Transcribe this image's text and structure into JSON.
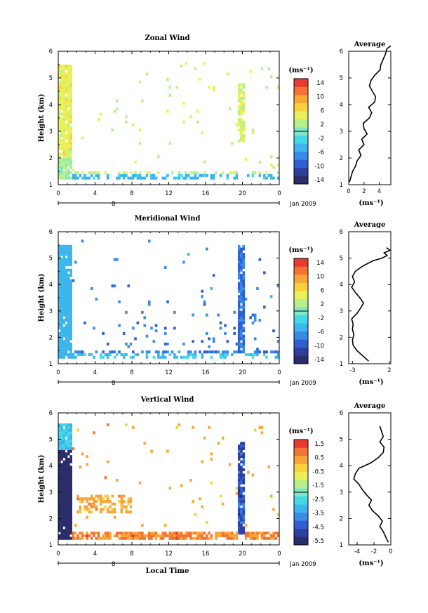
{
  "chart_data": [
    {
      "type": "heatmap",
      "title": "Zonal Wind",
      "ylabel": "Height (km)",
      "xlim": [
        0,
        24
      ],
      "ylim": [
        1,
        6
      ],
      "x_ticks": [
        "0",
        "4",
        "8",
        "12",
        "16",
        "20",
        "0"
      ],
      "y_ticks": [
        "1",
        "2",
        "3",
        "4",
        "5",
        "6"
      ],
      "date_label": "Jan 2009",
      "date_bar_label": "8",
      "colorbar": {
        "unit_label": "(ms⁻¹)",
        "min": -16,
        "max": 16,
        "labels": [
          "14",
          "10",
          "6",
          "2",
          "-2",
          "-6",
          "-10",
          "-14"
        ]
      },
      "average_profile": {
        "title": "Average",
        "xlabel": "(ms⁻¹)",
        "x_ticks": [
          "0",
          "2",
          "4"
        ],
        "xlim": [
          0,
          5.5
        ],
        "y": [
          1.1,
          1.3,
          1.5,
          1.7,
          1.9,
          2.1,
          2.3,
          2.5,
          2.7,
          2.9,
          3.1,
          3.3,
          3.5,
          3.7,
          3.9,
          4.1,
          4.3,
          4.5,
          4.7,
          4.9,
          5.1,
          5.3,
          5.5,
          5.7,
          5.9,
          6.1,
          6.2
        ],
        "x": [
          0.1,
          0.3,
          0.5,
          0.9,
          1.1,
          1.6,
          1.3,
          2.0,
          1.7,
          2.4,
          2.0,
          1.9,
          2.7,
          3.0,
          2.6,
          3.4,
          3.5,
          3.1,
          2.7,
          2.9,
          3.4,
          4.1,
          4.2,
          4.5,
          4.8,
          5.0,
          5.5
        ]
      }
    },
    {
      "type": "heatmap",
      "title": "Meridional Wind",
      "ylabel": "Height (km)",
      "xlim": [
        0,
        24
      ],
      "ylim": [
        1,
        6
      ],
      "x_ticks": [
        "0",
        "4",
        "8",
        "12",
        "16",
        "20",
        "0"
      ],
      "y_ticks": [
        "1",
        "2",
        "3",
        "4",
        "5",
        "6"
      ],
      "date_label": "Jan 2009",
      "date_bar_label": "8",
      "colorbar": {
        "unit_label": "(ms⁻¹)",
        "min": -16,
        "max": 16,
        "labels": [
          "14",
          "10",
          "6",
          "2",
          "-2",
          "-6",
          "-10",
          "-14"
        ]
      },
      "average_profile": {
        "title": "Average",
        "xlabel": "(ms⁻¹)",
        "x_ticks": [
          "-3",
          "2"
        ],
        "xlim": [
          -3.5,
          2.2
        ],
        "y": [
          1.1,
          1.3,
          1.5,
          1.7,
          1.9,
          2.1,
          2.3,
          2.5,
          2.7,
          2.9,
          3.1,
          3.3,
          3.5,
          3.7,
          3.9,
          4.1,
          4.3,
          4.5,
          4.7,
          4.9,
          5.0,
          5.1,
          5.2,
          5.3,
          5.4
        ],
        "x": [
          -0.8,
          -1.6,
          -2.4,
          -2.9,
          -3.0,
          -2.8,
          -3.0,
          -2.9,
          -3.1,
          -2.4,
          -1.9,
          -1.5,
          -2.0,
          -2.6,
          -3.1,
          -2.7,
          -3.0,
          -2.6,
          -1.6,
          -0.2,
          1.0,
          1.7,
          1.3,
          2.1,
          1.6
        ]
      }
    },
    {
      "type": "heatmap",
      "title": "Vertical Wind",
      "ylabel": "Height (km)",
      "xlabel": "Local Time",
      "xlim": [
        0,
        24
      ],
      "ylim": [
        1,
        6
      ],
      "x_ticks": [
        "0",
        "4",
        "8",
        "12",
        "16",
        "20",
        "0"
      ],
      "y_ticks": [
        "1",
        "2",
        "3",
        "4",
        "5",
        "6"
      ],
      "date_label": "Jan 2009",
      "date_bar_label": "8",
      "colorbar": {
        "unit_label": "(ms⁻¹)",
        "min": -6.1,
        "max": 2.0,
        "labels": [
          "1.5",
          "0.5",
          "-0.5",
          "-1.5",
          "-2.5",
          "-3.5",
          "-4.5",
          "-5.5"
        ]
      },
      "average_profile": {
        "title": "Average",
        "xlabel": "(ms⁻¹)",
        "x_ticks": [
          "-4",
          "-2",
          "0"
        ],
        "xlim": [
          -5,
          0
        ],
        "y": [
          1.1,
          1.3,
          1.5,
          1.7,
          1.9,
          2.1,
          2.3,
          2.5,
          2.7,
          2.9,
          3.1,
          3.3,
          3.5,
          3.7,
          3.9,
          4.1,
          4.3,
          4.5,
          4.7,
          4.9,
          5.1,
          5.3,
          5.5
        ],
        "x": [
          -0.3,
          -0.6,
          -0.9,
          -1.3,
          -1.0,
          -1.5,
          -2.2,
          -2.6,
          -2.3,
          -2.9,
          -3.4,
          -3.8,
          -4.4,
          -4.2,
          -3.8,
          -2.4,
          -1.5,
          -0.9,
          -0.8,
          -1.3,
          -0.9,
          -1.1,
          -1.3
        ]
      }
    }
  ],
  "colors": {
    "colormap": [
      "#2b2d6b",
      "#2e3f9e",
      "#2f5fd3",
      "#3a8ae8",
      "#3cb6ec",
      "#45d8e6",
      "#7ee8c8",
      "#b7f08a",
      "#e8f05a",
      "#f8d23c",
      "#f8a637",
      "#f27435",
      "#e83a2f"
    ],
    "axis": "#000000",
    "tick_label": "#000000"
  }
}
